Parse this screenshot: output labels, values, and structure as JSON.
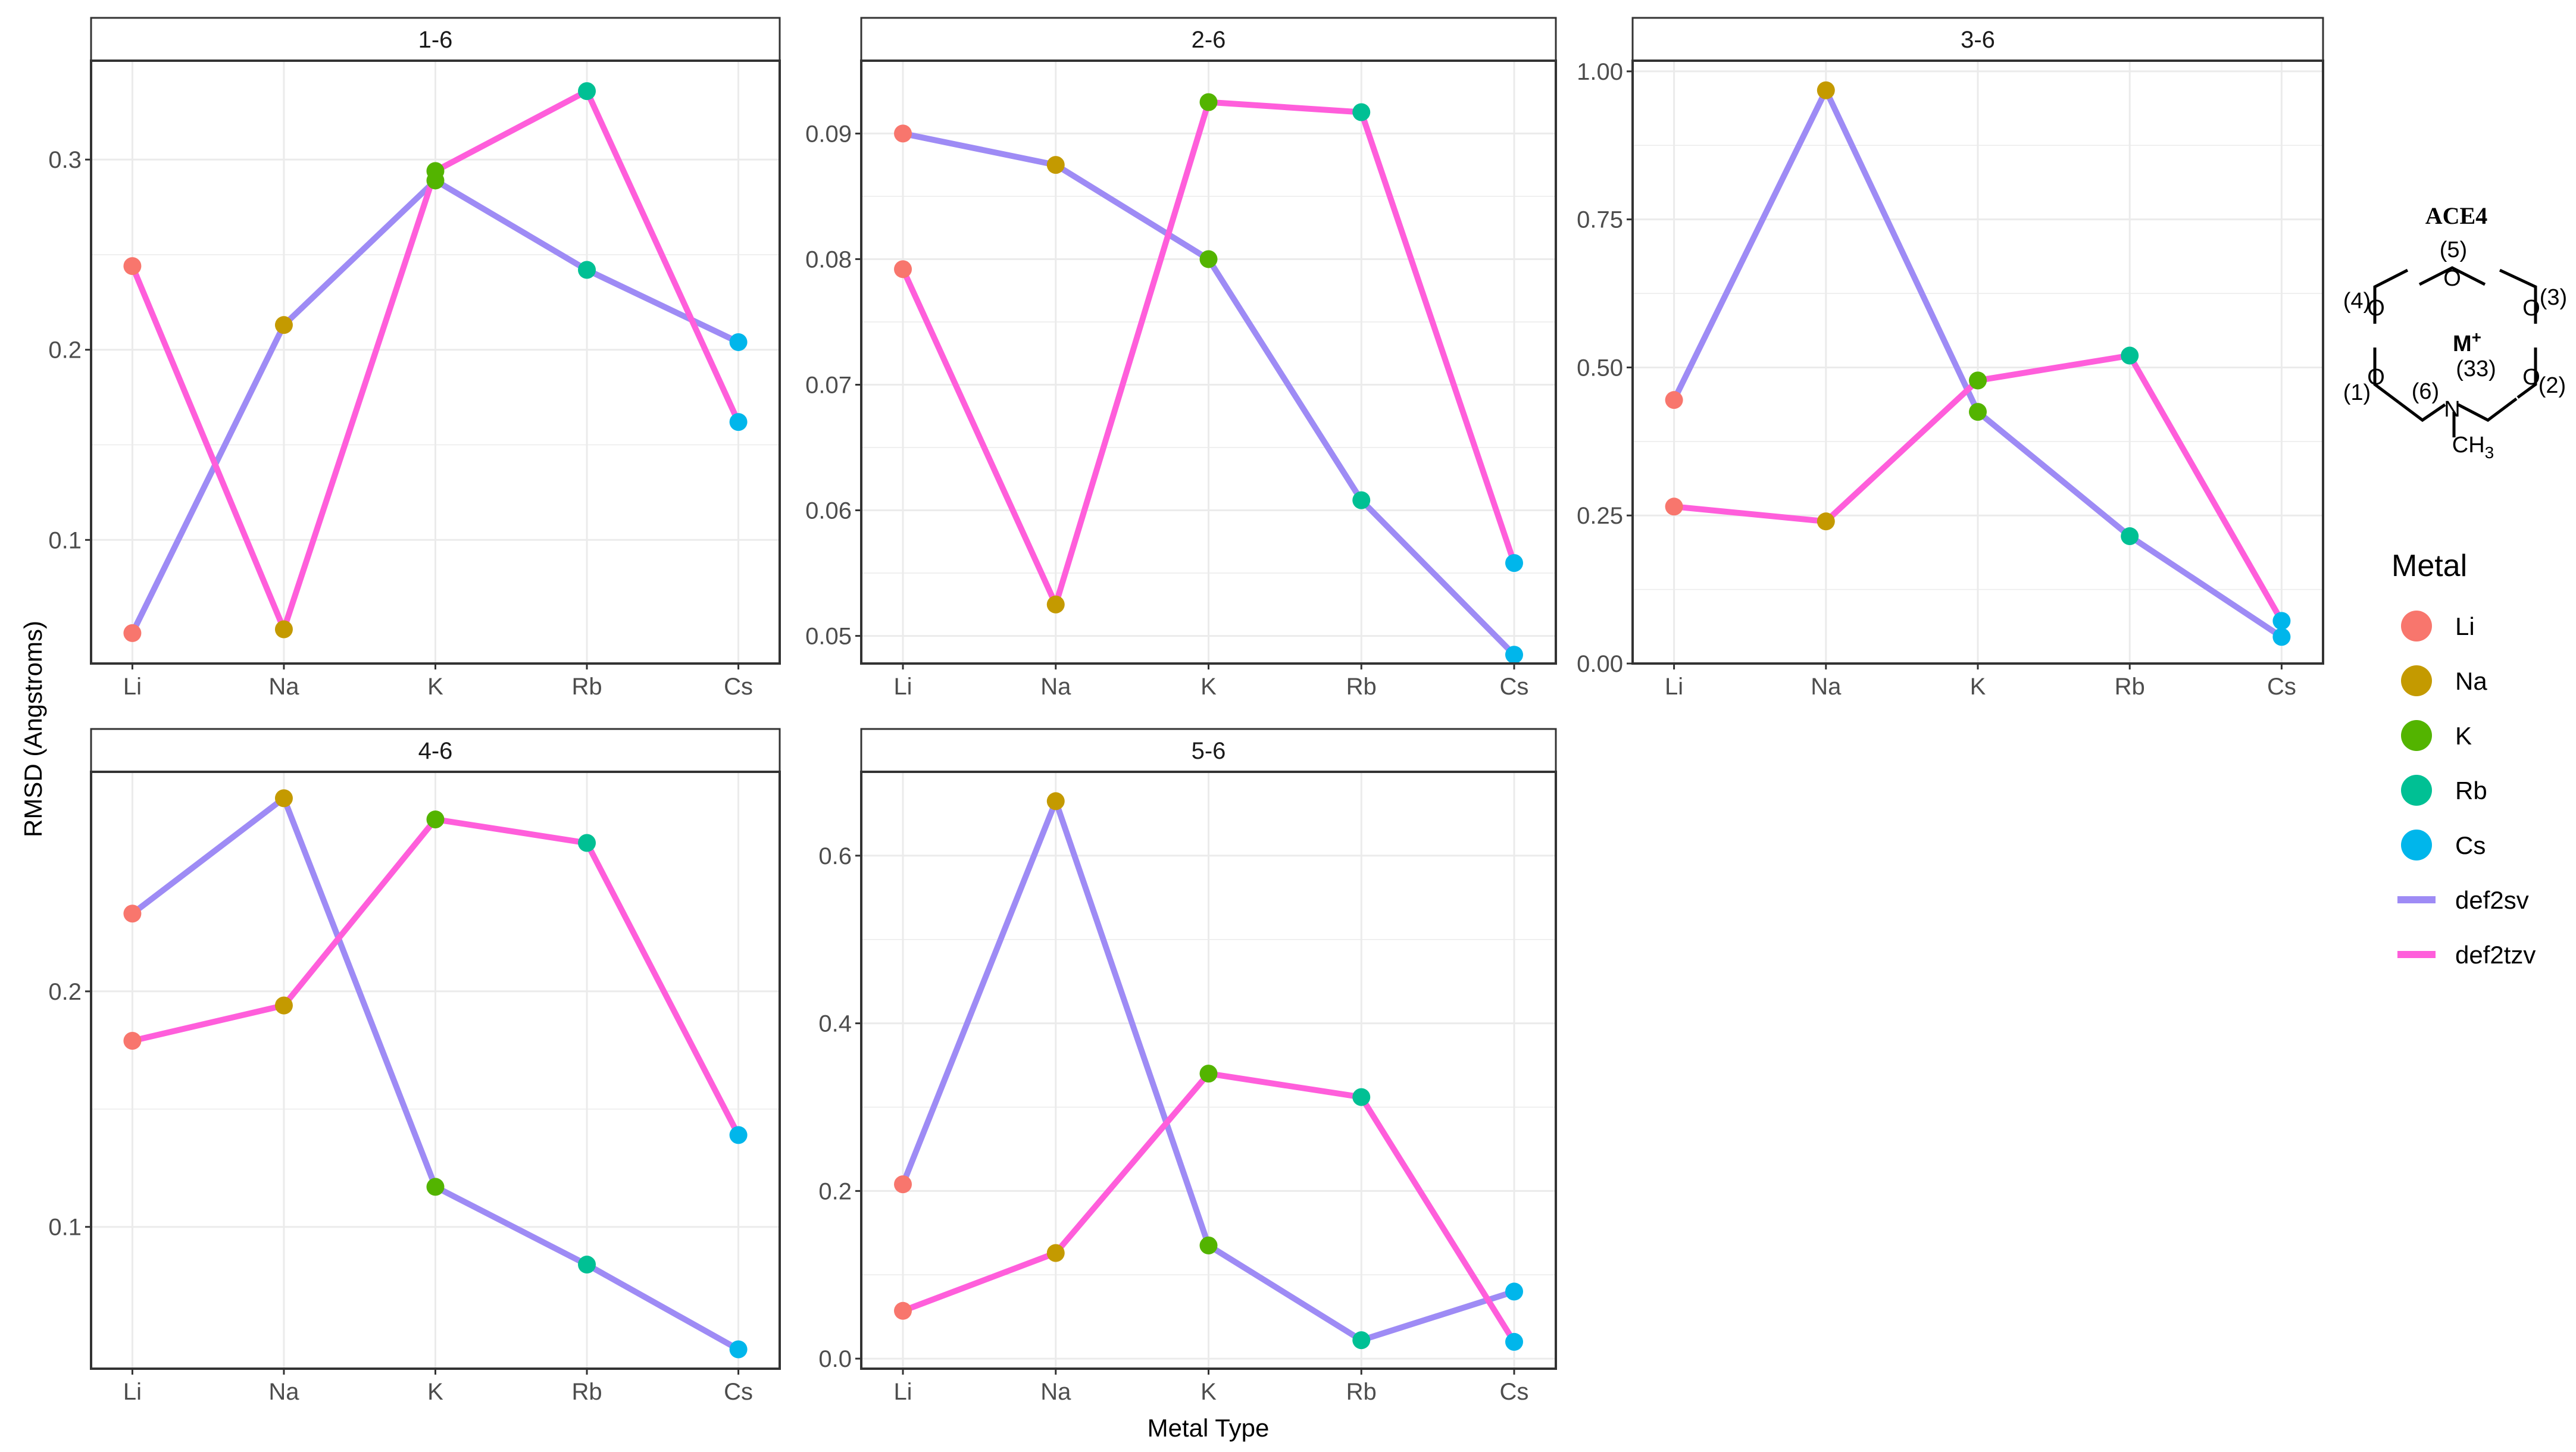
{
  "chart_data": {
    "type": "line",
    "layout": "facet_wrap",
    "xlabel": "Metal Type",
    "ylabel": "RMSD (Angstroms)",
    "categories": [
      "Li",
      "Na",
      "K",
      "Rb",
      "Cs"
    ],
    "point_colors": {
      "Li": "#F8766D",
      "Na": "#C49A00",
      "K": "#53B400",
      "Rb": "#00C094",
      "Cs": "#00B6EB"
    },
    "series_styles": [
      {
        "name": "def2sv",
        "color": "#9E8BF5"
      },
      {
        "name": "def2tzv",
        "color": "#FF5EDB"
      }
    ],
    "legend": {
      "title": "Metal",
      "position": "right",
      "metal_entries": [
        "Li",
        "Na",
        "K",
        "Rb",
        "Cs"
      ],
      "line_entries": [
        "def2sv",
        "def2tzv"
      ]
    },
    "panels": [
      {
        "title": "1-6",
        "ylim": [
          0.035,
          0.352
        ],
        "yticks": [
          0.1,
          0.2,
          0.3
        ],
        "ytick_labels": [
          "0.1",
          "0.2",
          "0.3"
        ],
        "series": [
          {
            "name": "def2sv",
            "values": [
              0.051,
              0.213,
              0.289,
              0.242,
              0.204
            ]
          },
          {
            "name": "def2tzv",
            "values": [
              0.244,
              0.053,
              0.294,
              0.336,
              0.162
            ]
          }
        ]
      },
      {
        "title": "2-6",
        "ylim": [
          0.0478,
          0.0958
        ],
        "yticks": [
          0.05,
          0.06,
          0.07,
          0.08,
          0.09
        ],
        "ytick_labels": [
          "0.05",
          "0.06",
          "0.07",
          "0.08",
          "0.09"
        ],
        "series": [
          {
            "name": "def2sv",
            "values": [
              0.09,
              0.0875,
              0.08,
              0.0608,
              0.0485
            ]
          },
          {
            "name": "def2tzv",
            "values": [
              0.0792,
              0.0525,
              0.0925,
              0.0917,
              0.0558
            ]
          }
        ]
      },
      {
        "title": "3-6",
        "ylim": [
          0.0,
          1.018
        ],
        "yticks": [
          0.0,
          0.25,
          0.5,
          0.75,
          1.0
        ],
        "ytick_labels": [
          "0.00",
          "0.25",
          "0.50",
          "0.75",
          "1.00"
        ],
        "series": [
          {
            "name": "def2sv",
            "values": [
              0.445,
              0.968,
              0.425,
              0.215,
              0.045
            ]
          },
          {
            "name": "def2tzv",
            "values": [
              0.265,
              0.24,
              0.478,
              0.52,
              0.072
            ]
          }
        ]
      },
      {
        "title": "4-6",
        "ylim": [
          0.0398,
          0.2932
        ],
        "yticks": [
          0.1,
          0.2
        ],
        "ytick_labels": [
          "0.1",
          "0.2"
        ],
        "series": [
          {
            "name": "def2sv",
            "values": [
              0.233,
              0.282,
              0.117,
              0.084,
              0.048
            ]
          },
          {
            "name": "def2tzv",
            "values": [
              0.179,
              0.194,
              0.273,
              0.263,
              0.139
            ]
          }
        ]
      },
      {
        "title": "5-6",
        "ylim": [
          -0.012,
          0.7
        ],
        "yticks": [
          0.0,
          0.2,
          0.4,
          0.6
        ],
        "ytick_labels": [
          "0.0",
          "0.2",
          "0.4",
          "0.6"
        ],
        "series": [
          {
            "name": "def2sv",
            "values": [
              0.208,
              0.665,
              0.135,
              0.022,
              0.08
            ]
          },
          {
            "name": "def2tzv",
            "values": [
              0.057,
              0.126,
              0.34,
              0.312,
              0.02
            ]
          }
        ]
      }
    ]
  },
  "structure": {
    "title": "ACE4",
    "labels": {
      "pos5": "(5)",
      "pos4": "(4)",
      "pos3": "(3)",
      "pos2": "(2)",
      "pos1": "(1)",
      "pos6": "(6)",
      "pos33": "(33)",
      "metal": "M",
      "charge": "+",
      "oxygen": "O",
      "nitrogen": "N",
      "methyl": "CH",
      "methyl_sub": "3"
    }
  }
}
